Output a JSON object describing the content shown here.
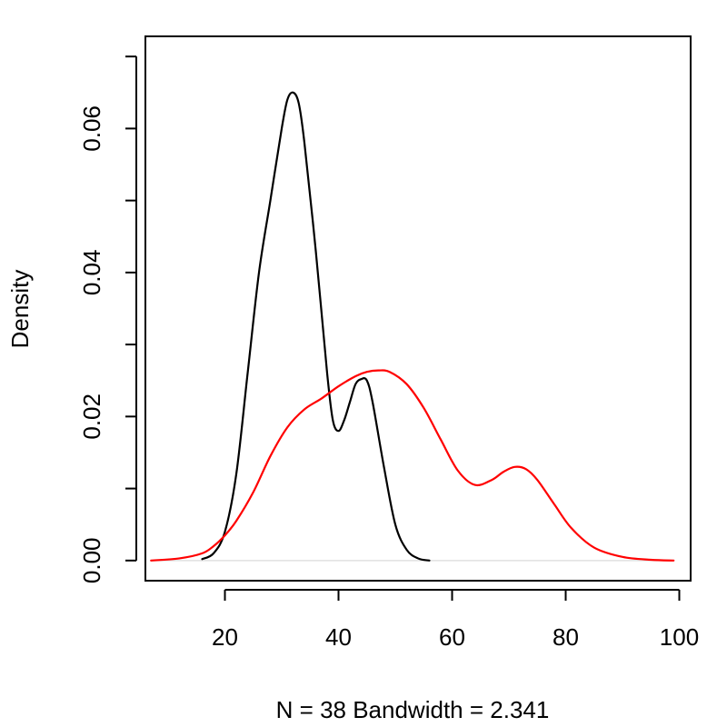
{
  "chart_data": {
    "type": "line",
    "title": "",
    "xlabel": "N = 38   Bandwidth = 2.341",
    "ylabel": "Density",
    "xlim": [
      6,
      102
    ],
    "ylim": [
      -0.0028,
      0.0728
    ],
    "x_ticks": [
      {
        "value": 20,
        "label": "20"
      },
      {
        "value": 40,
        "label": "40"
      },
      {
        "value": 60,
        "label": "60"
      },
      {
        "value": 80,
        "label": "80"
      },
      {
        "value": 100,
        "label": "100"
      }
    ],
    "y_ticks": [
      {
        "value": 0.0,
        "label": "0.00",
        "major": true
      },
      {
        "value": 0.01,
        "label": "",
        "major": false
      },
      {
        "value": 0.02,
        "label": "0.02",
        "major": true
      },
      {
        "value": 0.03,
        "label": "",
        "major": false
      },
      {
        "value": 0.04,
        "label": "0.04",
        "major": true
      },
      {
        "value": 0.05,
        "label": "",
        "major": false
      },
      {
        "value": 0.06,
        "label": "0.06",
        "major": true
      },
      {
        "value": 0.07,
        "label": "",
        "major": false
      }
    ],
    "baseline": {
      "y": 0,
      "color": "#e0e0e0"
    },
    "series": [
      {
        "name": "density-black",
        "color": "#000000",
        "x": [
          16,
          18,
          20,
          22,
          24,
          26,
          28,
          30,
          31,
          32,
          33,
          34,
          36,
          38,
          39,
          40,
          41,
          42,
          43,
          44,
          45,
          46,
          48,
          50,
          52,
          54,
          56
        ],
        "y": [
          0.0002,
          0.001,
          0.004,
          0.012,
          0.026,
          0.04,
          0.05,
          0.06,
          0.064,
          0.065,
          0.0635,
          0.058,
          0.043,
          0.026,
          0.0195,
          0.018,
          0.0195,
          0.022,
          0.0245,
          0.0252,
          0.025,
          0.022,
          0.013,
          0.005,
          0.0015,
          0.0003,
          0.0
        ]
      },
      {
        "name": "density-red",
        "color": "#ff0000",
        "x": [
          7,
          12,
          16,
          18,
          20,
          22,
          25,
          28,
          31,
          34,
          37,
          40,
          43,
          45,
          47,
          49,
          52,
          55,
          58,
          61,
          64,
          67,
          69,
          71,
          73,
          75,
          78,
          81,
          85,
          90,
          95,
          99
        ],
        "y": [
          0.0,
          0.0003,
          0.001,
          0.002,
          0.0035,
          0.0055,
          0.0095,
          0.0145,
          0.0185,
          0.021,
          0.0225,
          0.0242,
          0.0256,
          0.0262,
          0.0264,
          0.0262,
          0.0245,
          0.0212,
          0.0168,
          0.0125,
          0.0105,
          0.0112,
          0.0123,
          0.013,
          0.0127,
          0.0112,
          0.0078,
          0.0045,
          0.0018,
          0.0005,
          0.0001,
          0.0
        ]
      }
    ]
  }
}
